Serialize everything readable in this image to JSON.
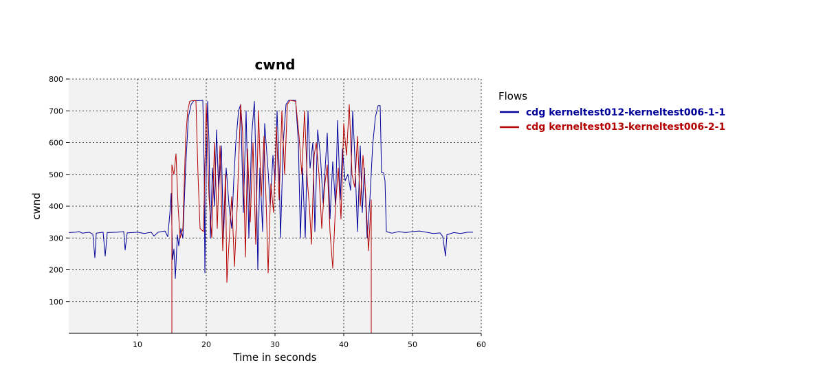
{
  "chart_data": {
    "type": "line",
    "title": "cwnd",
    "xlabel": "Time in seconds",
    "ylabel": "cwnd",
    "xlim": [
      0,
      60
    ],
    "ylim": [
      0,
      800
    ],
    "xticks": [
      10,
      20,
      30,
      40,
      50,
      60
    ],
    "yticks": [
      100,
      200,
      300,
      400,
      500,
      600,
      700,
      800
    ],
    "grid": true,
    "background": "#f2f2f2",
    "legend": {
      "title": "Flows",
      "position": "right"
    },
    "series": [
      {
        "name": "cdg kerneltest012-kerneltest006-1-1",
        "color": "#000099",
        "points": [
          [
            0,
            317
          ],
          [
            1,
            318
          ],
          [
            1.5,
            320
          ],
          [
            2,
            315
          ],
          [
            3,
            318
          ],
          [
            3.5,
            312
          ],
          [
            3.8,
            238
          ],
          [
            4,
            315
          ],
          [
            5,
            318
          ],
          [
            5.3,
            243
          ],
          [
            5.6,
            317
          ],
          [
            7,
            318
          ],
          [
            8,
            320
          ],
          [
            8.2,
            262
          ],
          [
            8.5,
            316
          ],
          [
            10,
            318
          ],
          [
            11,
            314
          ],
          [
            12,
            318
          ],
          [
            12.4,
            306
          ],
          [
            13,
            318
          ],
          [
            14,
            322
          ],
          [
            14.4,
            304
          ],
          [
            14.7,
            375
          ],
          [
            14.9,
            440
          ],
          [
            15.1,
            232
          ],
          [
            15.3,
            265
          ],
          [
            15.5,
            172
          ],
          [
            15.8,
            310
          ],
          [
            16,
            275
          ],
          [
            16.3,
            330
          ],
          [
            16.6,
            300
          ],
          [
            17,
            520
          ],
          [
            17.4,
            680
          ],
          [
            17.8,
            720
          ],
          [
            18.2,
            732
          ],
          [
            19,
            732
          ],
          [
            19.5,
            733
          ],
          [
            19.7,
            520
          ],
          [
            19.8,
            190
          ],
          [
            20,
            510
          ],
          [
            20.2,
            730
          ],
          [
            20.4,
            600
          ],
          [
            20.6,
            300
          ],
          [
            20.9,
            520
          ],
          [
            21.2,
            400
          ],
          [
            21.5,
            640
          ],
          [
            21.8,
            450
          ],
          [
            22.2,
            590
          ],
          [
            22.5,
            300
          ],
          [
            22.9,
            520
          ],
          [
            23.3,
            405
          ],
          [
            23.7,
            330
          ],
          [
            24,
            480
          ],
          [
            24.3,
            600
          ],
          [
            24.7,
            700
          ],
          [
            25,
            720
          ],
          [
            25.4,
            380
          ],
          [
            25.8,
            700
          ],
          [
            26.2,
            300
          ],
          [
            26.6,
            620
          ],
          [
            27,
            730
          ],
          [
            27.3,
            470
          ],
          [
            27.5,
            200
          ],
          [
            27.8,
            520
          ],
          [
            28.2,
            320
          ],
          [
            28.5,
            660
          ],
          [
            29,
            510
          ],
          [
            29.3,
            400
          ],
          [
            29.7,
            560
          ],
          [
            30,
            480
          ],
          [
            30.3,
            700
          ],
          [
            30.6,
            520
          ],
          [
            30.8,
            300
          ],
          [
            31.2,
            600
          ],
          [
            31.6,
            720
          ],
          [
            32,
            733
          ],
          [
            33,
            733
          ],
          [
            33.4,
            600
          ],
          [
            33.7,
            300
          ],
          [
            34,
            520
          ],
          [
            34.4,
            300
          ],
          [
            34.8,
            700
          ],
          [
            35.1,
            520
          ],
          [
            35.5,
            600
          ],
          [
            35.8,
            320
          ],
          [
            36.2,
            640
          ],
          [
            36.6,
            560
          ],
          [
            37,
            410
          ],
          [
            37.3,
            520
          ],
          [
            37.6,
            630
          ],
          [
            38,
            360
          ],
          [
            38.4,
            540
          ],
          [
            38.8,
            400
          ],
          [
            39.1,
            670
          ],
          [
            39.5,
            420
          ],
          [
            39.8,
            580
          ],
          [
            40.2,
            480
          ],
          [
            40.6,
            500
          ],
          [
            41,
            450
          ],
          [
            41.3,
            700
          ],
          [
            41.6,
            560
          ],
          [
            42,
            320
          ],
          [
            42.4,
            590
          ],
          [
            42.7,
            380
          ],
          [
            43,
            520
          ],
          [
            43.4,
            300
          ],
          [
            43.8,
            420
          ],
          [
            44.2,
            590
          ],
          [
            44.6,
            680
          ],
          [
            45,
            716
          ],
          [
            45.3,
            716
          ],
          [
            45.5,
            505
          ],
          [
            45.8,
            505
          ],
          [
            46,
            480
          ],
          [
            46.2,
            320
          ],
          [
            47,
            315
          ],
          [
            48,
            320
          ],
          [
            49,
            317
          ],
          [
            50,
            320
          ],
          [
            51,
            322
          ],
          [
            52,
            318
          ],
          [
            53,
            314
          ],
          [
            54,
            316
          ],
          [
            54.4,
            305
          ],
          [
            54.8,
            243
          ],
          [
            55,
            310
          ],
          [
            56,
            317
          ],
          [
            57,
            314
          ],
          [
            58,
            318
          ],
          [
            58.8,
            318
          ]
        ]
      },
      {
        "name": "cdg kerneltest013-kerneltest006-2-1",
        "color": "#b30000",
        "points": [
          [
            0,
            0
          ],
          [
            15,
            0
          ],
          [
            15,
            530
          ],
          [
            15.3,
            500
          ],
          [
            15.6,
            565
          ],
          [
            15.9,
            400
          ],
          [
            16.2,
            300
          ],
          [
            16.6,
            330
          ],
          [
            17,
            610
          ],
          [
            17.3,
            700
          ],
          [
            17.6,
            730
          ],
          [
            18,
            732
          ],
          [
            18.5,
            732
          ],
          [
            18.8,
            500
          ],
          [
            19.1,
            330
          ],
          [
            19.6,
            320
          ],
          [
            20,
            720
          ],
          [
            20.4,
            430
          ],
          [
            20.8,
            300
          ],
          [
            21.2,
            600
          ],
          [
            21.6,
            330
          ],
          [
            22,
            590
          ],
          [
            22.4,
            260
          ],
          [
            22.8,
            500
          ],
          [
            23,
            160
          ],
          [
            23.4,
            320
          ],
          [
            23.7,
            430
          ],
          [
            24.1,
            210
          ],
          [
            24.5,
            400
          ],
          [
            25,
            720
          ],
          [
            25.3,
            630
          ],
          [
            25.7,
            240
          ],
          [
            26,
            580
          ],
          [
            26.4,
            350
          ],
          [
            26.8,
            600
          ],
          [
            27.2,
            280
          ],
          [
            27.6,
            700
          ],
          [
            28,
            430
          ],
          [
            28.4,
            620
          ],
          [
            28.8,
            350
          ],
          [
            29,
            190
          ],
          [
            29.4,
            470
          ],
          [
            29.8,
            380
          ],
          [
            30.2,
            650
          ],
          [
            30.6,
            420
          ],
          [
            31,
            700
          ],
          [
            31.4,
            500
          ],
          [
            31.8,
            720
          ],
          [
            32.2,
            733
          ],
          [
            33,
            730
          ],
          [
            33.5,
            620
          ],
          [
            33.9,
            500
          ],
          [
            34.3,
            700
          ],
          [
            34.7,
            480
          ],
          [
            35,
            400
          ],
          [
            35.3,
            280
          ],
          [
            35.7,
            560
          ],
          [
            36,
            600
          ],
          [
            36.4,
            500
          ],
          [
            36.8,
            330
          ],
          [
            37.2,
            460
          ],
          [
            37.6,
            530
          ],
          [
            38,
            320
          ],
          [
            38.4,
            205
          ],
          [
            38.8,
            400
          ],
          [
            39.2,
            520
          ],
          [
            39.6,
            360
          ],
          [
            40,
            660
          ],
          [
            40.4,
            560
          ],
          [
            40.8,
            720
          ],
          [
            41.2,
            500
          ],
          [
            41.6,
            460
          ],
          [
            42,
            620
          ],
          [
            42.4,
            400
          ],
          [
            42.8,
            560
          ],
          [
            43.2,
            430
          ],
          [
            43.6,
            260
          ],
          [
            44,
            420
          ],
          [
            44,
            0
          ],
          [
            60,
            0
          ]
        ]
      }
    ]
  }
}
